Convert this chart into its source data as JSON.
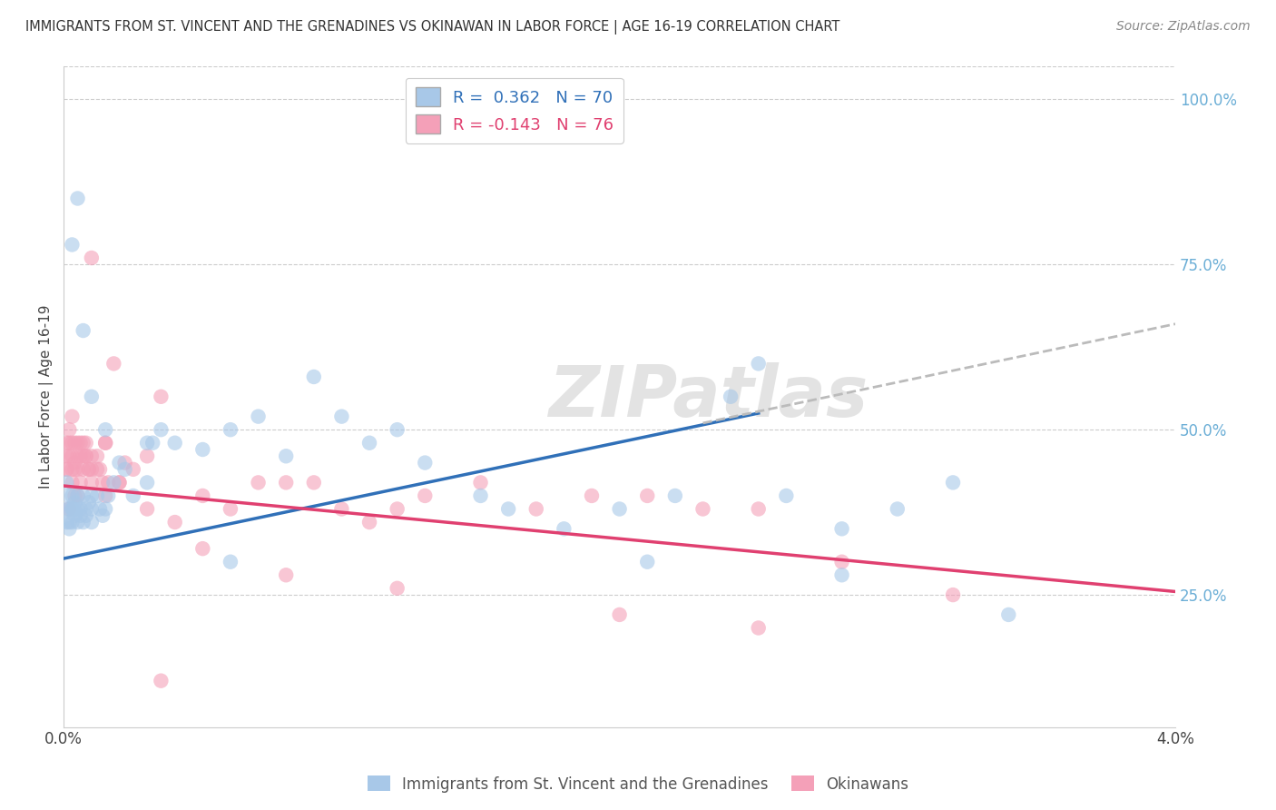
{
  "title": "IMMIGRANTS FROM ST. VINCENT AND THE GRENADINES VS OKINAWAN IN LABOR FORCE | AGE 16-19 CORRELATION CHART",
  "source": "Source: ZipAtlas.com",
  "ylabel": "In Labor Force | Age 16-19",
  "ylabel_right_ticks": [
    "25.0%",
    "50.0%",
    "75.0%",
    "100.0%"
  ],
  "ylabel_right_vals": [
    0.25,
    0.5,
    0.75,
    1.0
  ],
  "xlim": [
    0.0,
    0.04
  ],
  "ylim": [
    0.05,
    1.05
  ],
  "blue_R": 0.362,
  "blue_N": 70,
  "pink_R": -0.143,
  "pink_N": 76,
  "blue_color": "#a8c8e8",
  "pink_color": "#f4a0b8",
  "blue_line_color": "#3070b8",
  "pink_line_color": "#e04070",
  "trend_line_color_gray": "#bbbbbb",
  "watermark": "ZIPatlas",
  "legend_label_blue": "Immigrants from St. Vincent and the Grenadines",
  "legend_label_pink": "Okinawans",
  "blue_x": [
    0.0001,
    0.0001,
    0.0001,
    0.0002,
    0.0002,
    0.0002,
    0.0002,
    0.0003,
    0.0003,
    0.0003,
    0.0003,
    0.0004,
    0.0004,
    0.0004,
    0.0005,
    0.0005,
    0.0005,
    0.0006,
    0.0006,
    0.0007,
    0.0007,
    0.0008,
    0.0008,
    0.0009,
    0.001,
    0.001,
    0.001,
    0.0012,
    0.0013,
    0.0014,
    0.0015,
    0.0016,
    0.0018,
    0.002,
    0.0022,
    0.0025,
    0.003,
    0.0032,
    0.0035,
    0.004,
    0.005,
    0.006,
    0.007,
    0.008,
    0.009,
    0.01,
    0.011,
    0.012,
    0.013,
    0.015,
    0.016,
    0.018,
    0.02,
    0.022,
    0.024,
    0.025,
    0.026,
    0.028,
    0.03,
    0.032,
    0.0003,
    0.0005,
    0.0007,
    0.001,
    0.0015,
    0.003,
    0.006,
    0.021,
    0.028,
    0.034
  ],
  "blue_y": [
    0.42,
    0.38,
    0.36,
    0.4,
    0.38,
    0.36,
    0.35,
    0.38,
    0.36,
    0.38,
    0.4,
    0.37,
    0.39,
    0.38,
    0.36,
    0.38,
    0.4,
    0.38,
    0.37,
    0.4,
    0.36,
    0.38,
    0.37,
    0.39,
    0.38,
    0.36,
    0.4,
    0.4,
    0.38,
    0.37,
    0.38,
    0.4,
    0.42,
    0.45,
    0.44,
    0.4,
    0.42,
    0.48,
    0.5,
    0.48,
    0.47,
    0.5,
    0.52,
    0.46,
    0.58,
    0.52,
    0.48,
    0.5,
    0.45,
    0.4,
    0.38,
    0.35,
    0.38,
    0.4,
    0.55,
    0.6,
    0.4,
    0.35,
    0.38,
    0.42,
    0.78,
    0.85,
    0.65,
    0.55,
    0.5,
    0.48,
    0.3,
    0.3,
    0.28,
    0.22
  ],
  "pink_x": [
    0.0001,
    0.0001,
    0.0001,
    0.0002,
    0.0002,
    0.0002,
    0.0003,
    0.0003,
    0.0003,
    0.0003,
    0.0004,
    0.0004,
    0.0004,
    0.0005,
    0.0005,
    0.0005,
    0.0006,
    0.0006,
    0.0007,
    0.0007,
    0.0007,
    0.0008,
    0.0008,
    0.0009,
    0.001,
    0.001,
    0.001,
    0.0012,
    0.0013,
    0.0014,
    0.0015,
    0.0016,
    0.0018,
    0.002,
    0.0022,
    0.0025,
    0.003,
    0.0035,
    0.004,
    0.005,
    0.006,
    0.007,
    0.008,
    0.009,
    0.01,
    0.011,
    0.012,
    0.013,
    0.015,
    0.017,
    0.019,
    0.021,
    0.023,
    0.025,
    0.028,
    0.032,
    0.0002,
    0.0004,
    0.0006,
    0.0009,
    0.0012,
    0.0015,
    0.002,
    0.003,
    0.005,
    0.008,
    0.012,
    0.02,
    0.025,
    0.0001,
    0.0003,
    0.0005,
    0.0008,
    0.001,
    0.0015,
    0.0035
  ],
  "pink_y": [
    0.48,
    0.46,
    0.44,
    0.5,
    0.48,
    0.46,
    0.52,
    0.48,
    0.46,
    0.44,
    0.48,
    0.45,
    0.44,
    0.48,
    0.46,
    0.44,
    0.48,
    0.46,
    0.48,
    0.46,
    0.44,
    0.48,
    0.46,
    0.44,
    0.46,
    0.44,
    0.42,
    0.46,
    0.44,
    0.42,
    0.4,
    0.42,
    0.6,
    0.42,
    0.45,
    0.44,
    0.46,
    0.55,
    0.36,
    0.4,
    0.38,
    0.42,
    0.42,
    0.42,
    0.38,
    0.36,
    0.38,
    0.4,
    0.42,
    0.38,
    0.4,
    0.4,
    0.38,
    0.38,
    0.3,
    0.25,
    0.38,
    0.4,
    0.42,
    0.44,
    0.44,
    0.48,
    0.42,
    0.38,
    0.32,
    0.28,
    0.26,
    0.22,
    0.2,
    0.44,
    0.42,
    0.4,
    0.46,
    0.76,
    0.48,
    0.12
  ],
  "blue_trend_x0": 0.0,
  "blue_trend_y0": 0.305,
  "blue_trend_x1": 0.025,
  "blue_trend_y1": 0.525,
  "pink_trend_x0": 0.0,
  "pink_trend_y0": 0.415,
  "pink_trend_x1": 0.04,
  "pink_trend_y1": 0.255,
  "gray_trend_x0": 0.023,
  "gray_trend_y0": 0.51,
  "gray_trend_x1": 0.04,
  "gray_trend_y1": 0.66
}
